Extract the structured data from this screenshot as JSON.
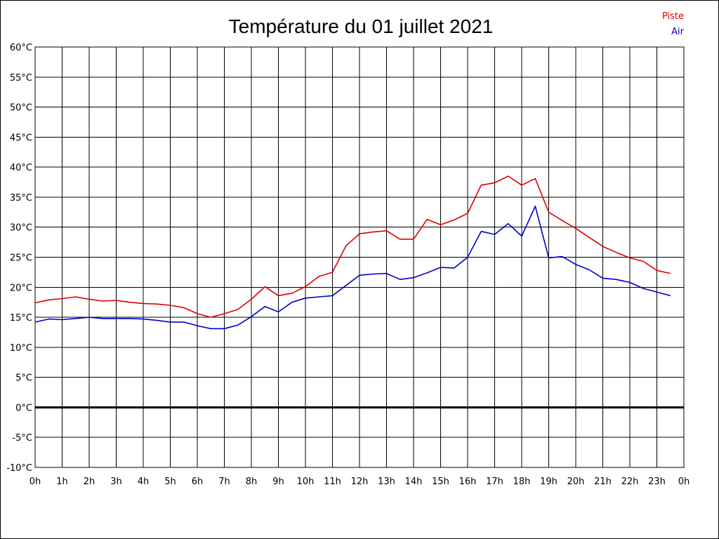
{
  "chart_data": {
    "type": "line",
    "title": "Température du 01 juillet 2021",
    "xlabel": "",
    "ylabel": "",
    "xlim": [
      0,
      24
    ],
    "ylim": [
      -10,
      60
    ],
    "grid": true,
    "legend_position": "top-right",
    "x_tick_labels": [
      "0h",
      "1h",
      "2h",
      "3h",
      "4h",
      "5h",
      "6h",
      "7h",
      "8h",
      "9h",
      "10h",
      "11h",
      "12h",
      "13h",
      "14h",
      "15h",
      "16h",
      "17h",
      "18h",
      "19h",
      "20h",
      "21h",
      "22h",
      "23h",
      "0h"
    ],
    "y_ticks": [
      -10,
      -5,
      0,
      5,
      10,
      15,
      20,
      25,
      30,
      35,
      40,
      45,
      50,
      55,
      60
    ],
    "y_tick_labels": [
      "-10°C",
      "-5°C",
      "0°C",
      "5°C",
      "10°C",
      "15°C",
      "20°C",
      "25°C",
      "30°C",
      "35°C",
      "40°C",
      "45°C",
      "50°C",
      "55°C",
      "60°C"
    ],
    "x": [
      0,
      0.5,
      1,
      1.5,
      2,
      2.5,
      3,
      3.5,
      4,
      4.5,
      5,
      5.5,
      6,
      6.5,
      7,
      7.5,
      8,
      8.5,
      9,
      9.5,
      10,
      10.5,
      11,
      11.5,
      12,
      12.5,
      13,
      13.5,
      14,
      14.5,
      15,
      15.5,
      16,
      16.5,
      17,
      17.5,
      18,
      18.5,
      19,
      19.5,
      20,
      20.5,
      21,
      21.5,
      22,
      22.5,
      23,
      23.5
    ],
    "series": [
      {
        "name": "Piste",
        "color": "#dd0000",
        "values": [
          17.4,
          17.9,
          18.1,
          18.4,
          18.0,
          17.7,
          17.8,
          17.5,
          17.3,
          17.2,
          17.0,
          16.6,
          15.6,
          15.0,
          15.6,
          16.3,
          18.0,
          20.1,
          18.6,
          19.0,
          20.1,
          21.8,
          22.5,
          26.9,
          28.9,
          29.2,
          29.4,
          28.0,
          28.0,
          31.3,
          30.4,
          31.2,
          32.3,
          37.0,
          37.4,
          38.5,
          37.0,
          38.1,
          32.5,
          31.1,
          29.8,
          28.3,
          26.8,
          25.8,
          24.9,
          24.3,
          22.8,
          22.3
        ]
      },
      {
        "name": "Air",
        "color": "#0000cc",
        "values": [
          14.2,
          14.7,
          14.6,
          14.8,
          15.0,
          14.8,
          14.8,
          14.8,
          14.7,
          14.5,
          14.2,
          14.2,
          13.6,
          13.1,
          13.1,
          13.7,
          15.1,
          16.8,
          15.9,
          17.5,
          18.2,
          18.4,
          18.6,
          20.3,
          22.0,
          22.2,
          22.3,
          21.3,
          21.6,
          22.4,
          23.3,
          23.2,
          25.0,
          29.3,
          28.8,
          30.6,
          28.5,
          33.5,
          24.9,
          25.1,
          23.8,
          22.9,
          21.5,
          21.3,
          20.8,
          19.8,
          19.2,
          18.6
        ]
      }
    ]
  }
}
